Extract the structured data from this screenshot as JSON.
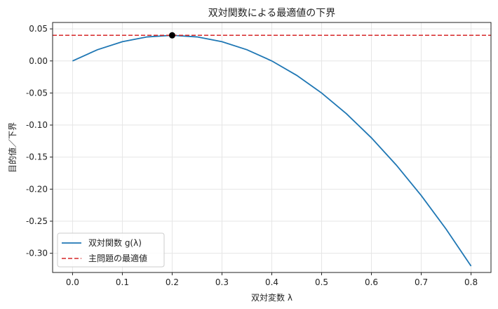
{
  "chart_data": {
    "type": "line",
    "title": "双対関数による最適値の下界",
    "xlabel": "双対変数 λ",
    "ylabel": "目的値／下界",
    "xlim": [
      -0.04,
      0.84
    ],
    "ylim": [
      -0.33,
      0.06
    ],
    "xticks": [
      0.0,
      0.1,
      0.2,
      0.3,
      0.4,
      0.5,
      0.6,
      0.7,
      0.8
    ],
    "xtick_labels": [
      "0.0",
      "0.1",
      "0.2",
      "0.3",
      "0.4",
      "0.5",
      "0.6",
      "0.7",
      "0.8"
    ],
    "yticks": [
      0.05,
      0.0,
      -0.05,
      -0.1,
      -0.15,
      -0.2,
      -0.25,
      -0.3
    ],
    "ytick_labels": [
      "0.05",
      "0.00",
      "-0.05",
      "-0.10",
      "-0.15",
      "-0.20",
      "-0.25",
      "-0.30"
    ],
    "grid": true,
    "legend_position": "bottom-left",
    "series": [
      {
        "name": "双対関数 g(λ)",
        "style": "solid",
        "color": "#1f77b4",
        "x": [
          0.0,
          0.05,
          0.1,
          0.15,
          0.2,
          0.25,
          0.3,
          0.35,
          0.4,
          0.45,
          0.5,
          0.55,
          0.6,
          0.65,
          0.7,
          0.75,
          0.8
        ],
        "y": [
          0.0,
          0.0175,
          0.03,
          0.0375,
          0.04,
          0.0375,
          0.03,
          0.0175,
          0.0,
          -0.0225,
          -0.05,
          -0.0825,
          -0.12,
          -0.1625,
          -0.21,
          -0.2625,
          -0.32
        ]
      },
      {
        "name": "主問題の最適値",
        "style": "dashed",
        "color": "#d62728",
        "y_constant": 0.04
      }
    ],
    "marker_point": {
      "x": 0.2,
      "y": 0.04,
      "color": "#000000"
    }
  }
}
